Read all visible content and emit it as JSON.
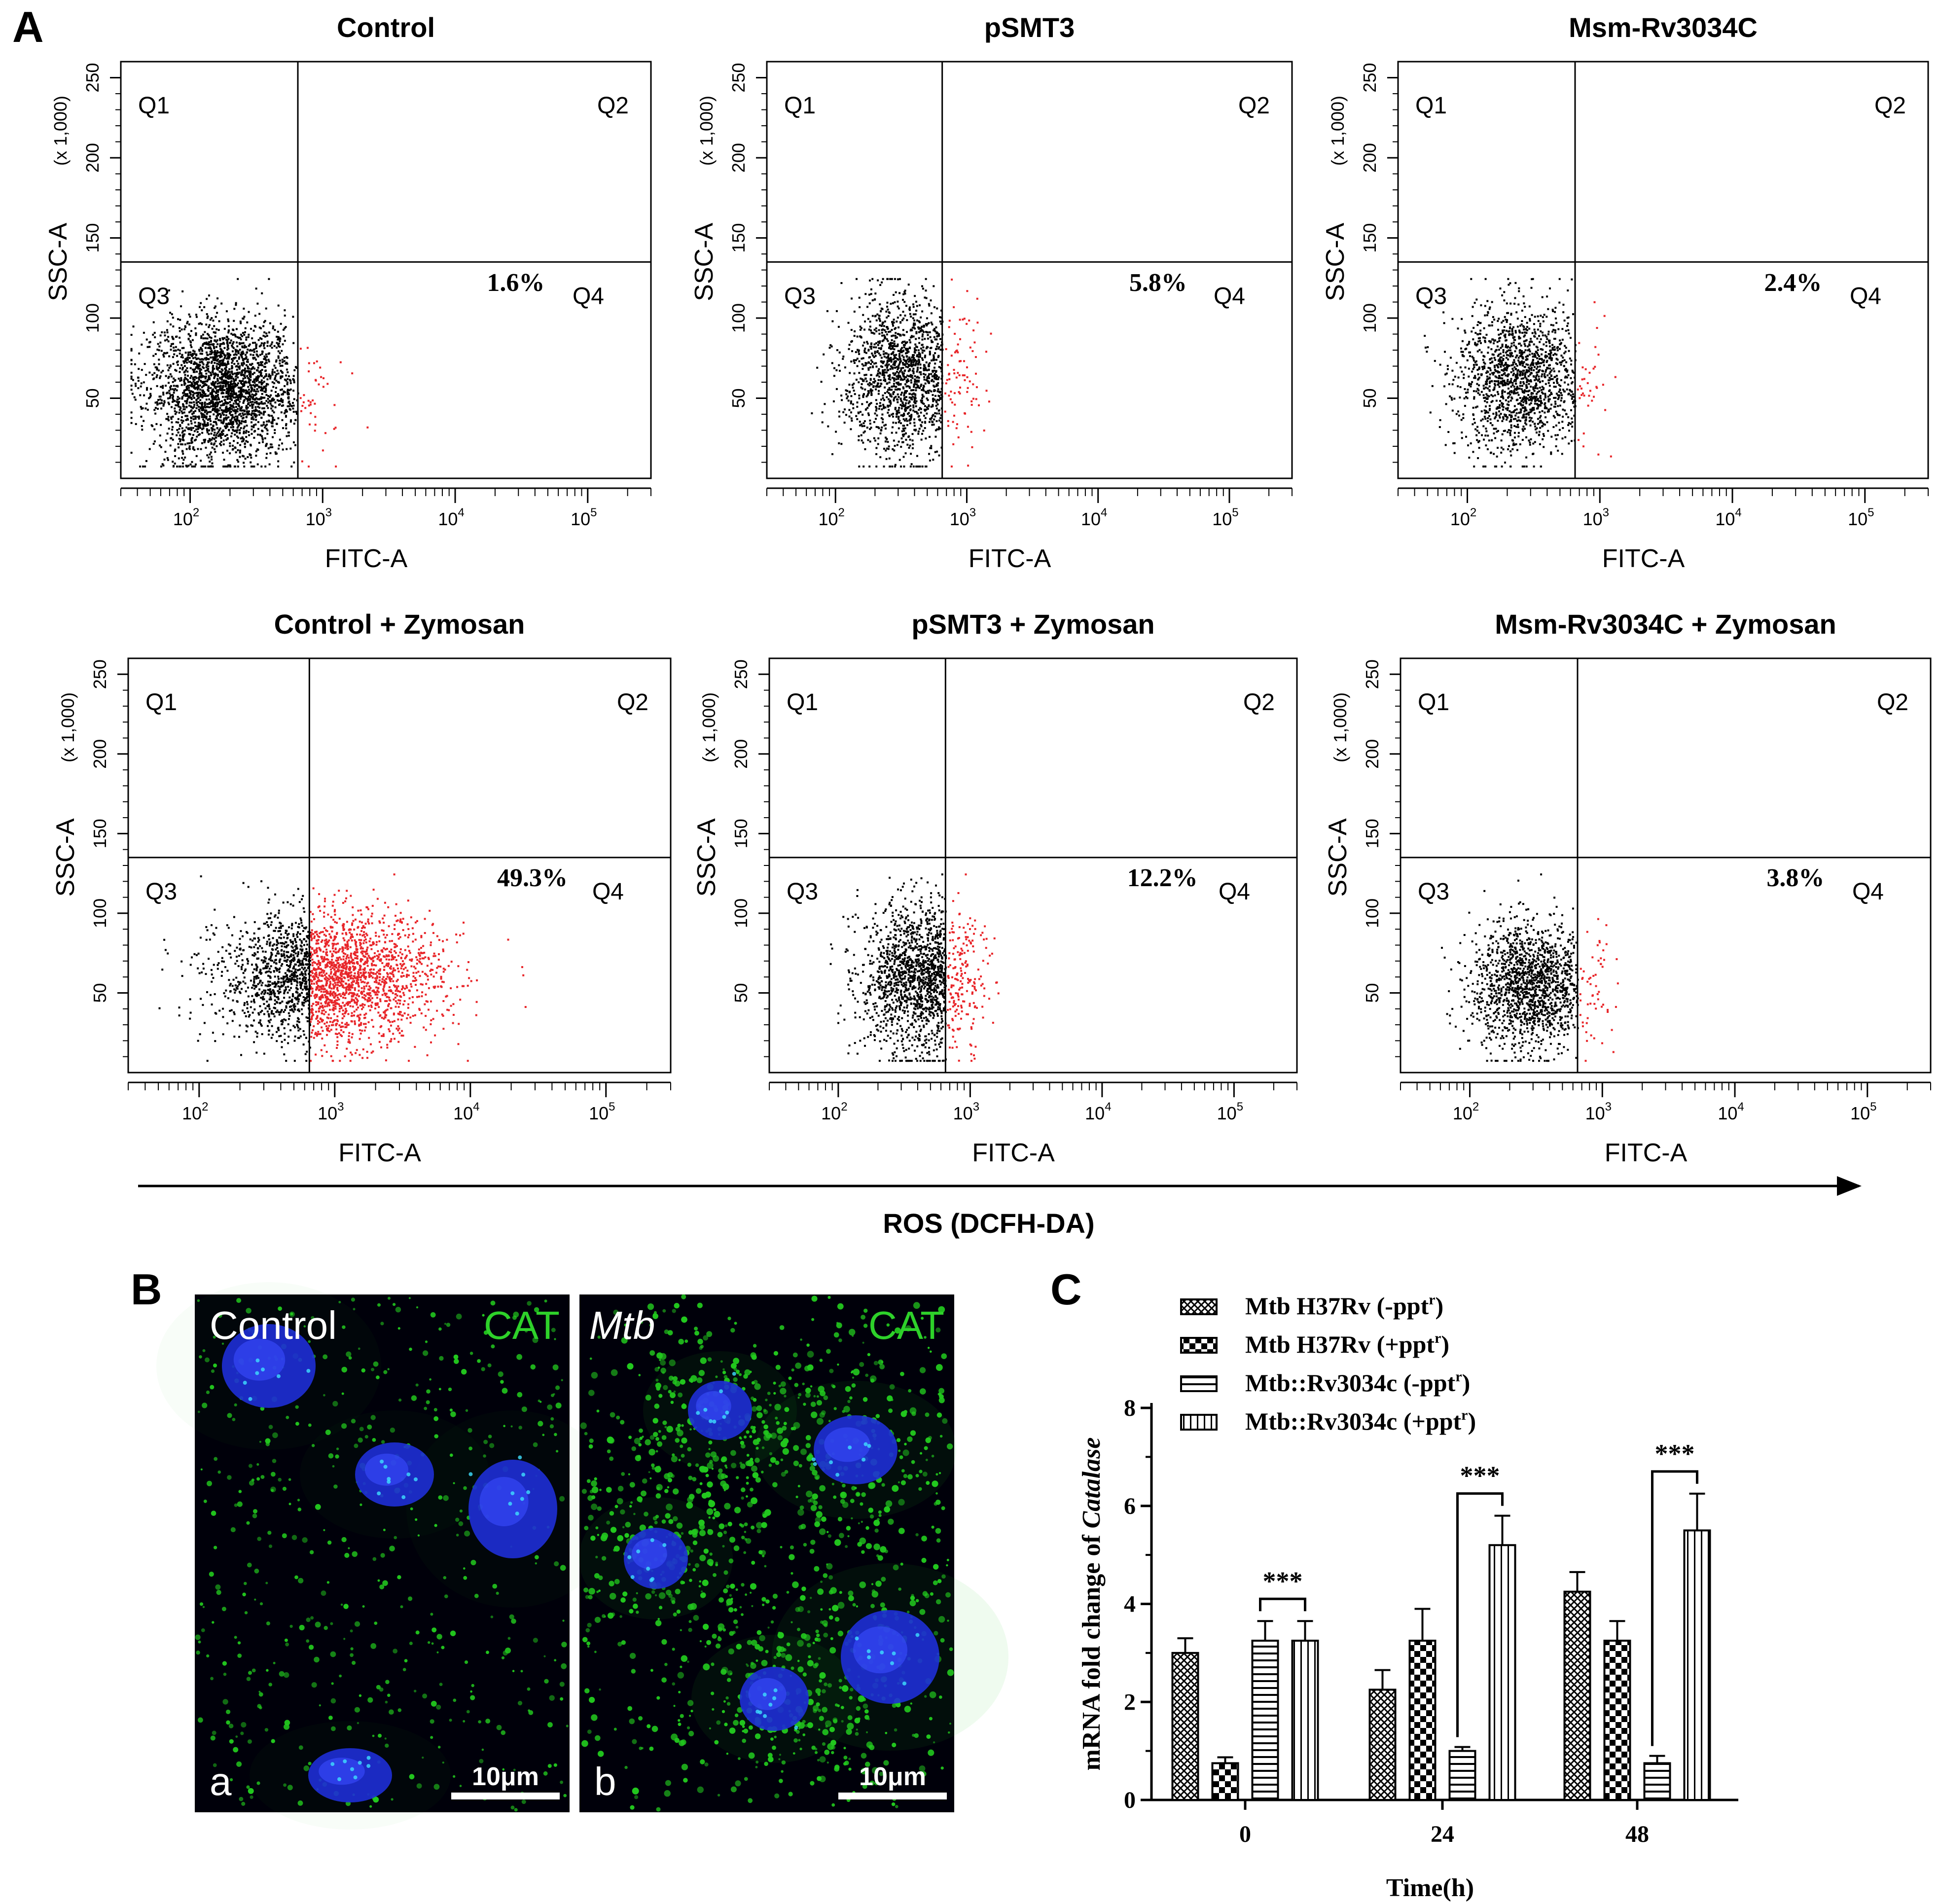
{
  "panel_labels": {
    "a": "A",
    "b": "B",
    "c": "C"
  },
  "flow": {
    "quadrant_labels": [
      "Q1",
      "Q2",
      "Q3",
      "Q4"
    ],
    "x_axis_label": "FITC-A",
    "y_axis_label": "SSC-A",
    "y_axis_multiplier": "(x 1,000)",
    "x_tick_labels": [
      "10",
      "10",
      "10",
      "10"
    ],
    "x_tick_exponents": [
      "2",
      "3",
      "4",
      "5"
    ],
    "y_tick_labels": [
      "50",
      "100",
      "150",
      "200",
      "250"
    ],
    "bottom_axis_label": "ROS (DCFH-DA)",
    "colors": {
      "gated_out": "#000000",
      "positive": "#e8262a"
    }
  },
  "microscopy": {
    "panel_a": {
      "title": "Control",
      "channel": "CAT",
      "letter": "a",
      "scale_bar": "10μm"
    },
    "panel_b": {
      "title": "Mtb",
      "channel": "CAT",
      "letter": "b",
      "scale_bar": "10μm"
    },
    "colors": {
      "nucleus": "#1e2fd6",
      "catalase": "#22c81e",
      "background": "#000008"
    }
  },
  "chart_data": [
    {
      "type": "scatter",
      "title": "Control",
      "q4_percent": "1.6%",
      "xlabel": "FITC-A",
      "ylabel": "SSC-A",
      "x_scale": "log",
      "xlim": [
        30,
        300000
      ],
      "ylim": [
        0,
        260000
      ],
      "gate_x": 650,
      "gate_y": 135000
    },
    {
      "type": "scatter",
      "title": "pSMT3",
      "q4_percent": "5.8%",
      "xlabel": "FITC-A",
      "ylabel": "SSC-A",
      "x_scale": "log",
      "xlim": [
        30,
        300000
      ],
      "ylim": [
        0,
        260000
      ],
      "gate_x": 650,
      "gate_y": 135000
    },
    {
      "type": "scatter",
      "title": "Msm-Rv3034C",
      "q4_percent": "2.4%",
      "xlabel": "FITC-A",
      "ylabel": "SSC-A",
      "x_scale": "log",
      "xlim": [
        30,
        300000
      ],
      "ylim": [
        0,
        260000
      ],
      "gate_x": 650,
      "gate_y": 135000
    },
    {
      "type": "scatter",
      "title": "Control + Zymosan",
      "q4_percent": "49.3%",
      "xlabel": "FITC-A",
      "ylabel": "SSC-A",
      "x_scale": "log",
      "xlim": [
        30,
        300000
      ],
      "ylim": [
        0,
        260000
      ],
      "gate_x": 650,
      "gate_y": 135000
    },
    {
      "type": "scatter",
      "title": "pSMT3 + Zymosan",
      "q4_percent": "12.2%",
      "xlabel": "FITC-A",
      "ylabel": "SSC-A",
      "x_scale": "log",
      "xlim": [
        30,
        300000
      ],
      "ylim": [
        0,
        260000
      ],
      "gate_x": 650,
      "gate_y": 135000
    },
    {
      "type": "scatter",
      "title": "Msm-Rv3034C + Zymosan",
      "q4_percent": "3.8%",
      "xlabel": "FITC-A",
      "ylabel": "SSC-A",
      "x_scale": "log",
      "xlim": [
        30,
        300000
      ],
      "ylim": [
        0,
        260000
      ],
      "gate_x": 650,
      "gate_y": 135000
    },
    {
      "type": "bar",
      "categories": [
        "0",
        "24",
        "48"
      ],
      "xlabel": "Time(h)",
      "ylabel_prefix": "mRNA fold change of ",
      "ylabel_italic": "Catalase",
      "ylim": [
        0,
        8
      ],
      "y_ticks": [
        0,
        2,
        4,
        6,
        8
      ],
      "legend_placement": "top-left",
      "series": [
        {
          "name": "Mtb H37Rv (-ppt",
          "sup": "r",
          "close": ")",
          "pattern": "crosshatch",
          "values": [
            3.0,
            2.25,
            4.25
          ],
          "errors": [
            0.3,
            0.4,
            0.4
          ]
        },
        {
          "name": "Mtb H37Rv (+ppt",
          "sup": "r",
          "close": ")",
          "pattern": "checker",
          "values": [
            0.75,
            3.25,
            3.25
          ],
          "errors": [
            0.12,
            0.65,
            0.4
          ]
        },
        {
          "name": "Mtb::Rv3034c (-ppt",
          "sup": "r",
          "close": ")",
          "pattern": "hlines",
          "values": [
            3.25,
            1.0,
            0.75
          ],
          "errors": [
            0.4,
            0.08,
            0.15
          ]
        },
        {
          "name": "Mtb::Rv3034c (+ppt",
          "sup": "r",
          "close": ")",
          "pattern": "vlines",
          "values": [
            3.25,
            5.2,
            5.5
          ],
          "errors": [
            0.4,
            0.6,
            0.75
          ]
        }
      ],
      "significance": [
        "***",
        "***",
        "***"
      ]
    }
  ]
}
